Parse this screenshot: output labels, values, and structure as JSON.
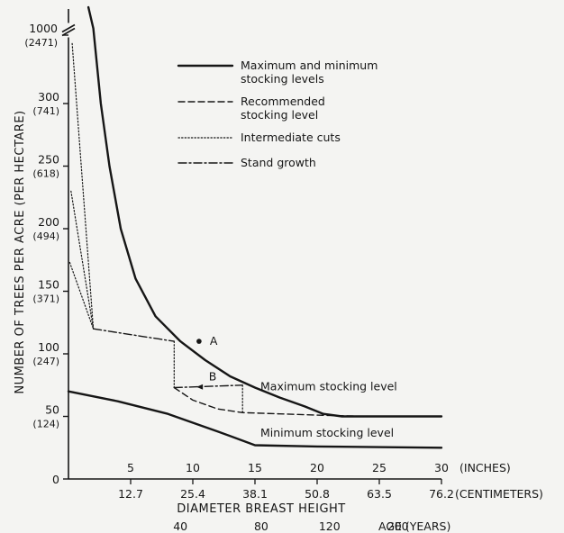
{
  "chart_data": {
    "type": "line",
    "title": "",
    "ylabel": "NUMBER OF TREES PER ACRE (PER HECTARE)",
    "xlabel": "DIAMETER BREAST HEIGHT",
    "x_unit_primary": "(INCHES)",
    "x_unit_secondary": "(CENTIMETERS)",
    "age_axis_label": "AGE (YEARS)",
    "xlim": [
      0,
      30
    ],
    "ylim": [
      0,
      350
    ],
    "y_break": {
      "below": 350,
      "label": "1000",
      "sublabel": "(2471)"
    },
    "y_ticks": [
      {
        "value": 0,
        "label": "0",
        "sublabel": ""
      },
      {
        "value": 50,
        "label": "50",
        "sublabel": "(124)"
      },
      {
        "value": 100,
        "label": "100",
        "sublabel": "(247)"
      },
      {
        "value": 150,
        "label": "150",
        "sublabel": "(371)"
      },
      {
        "value": 200,
        "label": "200",
        "sublabel": "(494)"
      },
      {
        "value": 250,
        "label": "250",
        "sublabel": "(618)"
      },
      {
        "value": 300,
        "label": "300",
        "sublabel": "(741)"
      }
    ],
    "x_ticks_inches": [
      {
        "value": 5,
        "label": "5"
      },
      {
        "value": 10,
        "label": "10"
      },
      {
        "value": 15,
        "label": "15"
      },
      {
        "value": 20,
        "label": "20"
      },
      {
        "value": 25,
        "label": "25"
      },
      {
        "value": 30,
        "label": "30"
      }
    ],
    "x_ticks_cm": [
      {
        "value": 5,
        "label": "12.7"
      },
      {
        "value": 10,
        "label": "25.4"
      },
      {
        "value": 15,
        "label": "38.1"
      },
      {
        "value": 20,
        "label": "50.8"
      },
      {
        "value": 25,
        "label": "63.5"
      },
      {
        "value": 30,
        "label": "76.2"
      }
    ],
    "age_ticks": [
      {
        "value": 9,
        "label": "40"
      },
      {
        "value": 15.5,
        "label": "80"
      },
      {
        "value": 21,
        "label": "120"
      },
      {
        "value": 26.5,
        "label": "200"
      }
    ],
    "series": [
      {
        "name": "Maximum and minimum stocking levels",
        "style": "solid",
        "label": "Maximum stocking level",
        "points": [
          [
            1.6,
            420
          ],
          [
            2.0,
            360
          ],
          [
            2.6,
            300
          ],
          [
            3.3,
            250
          ],
          [
            4.2,
            200
          ],
          [
            5.4,
            160
          ],
          [
            7.0,
            130
          ],
          [
            9.0,
            110
          ],
          [
            11.0,
            95
          ],
          [
            13.0,
            82
          ],
          [
            15.0,
            73
          ],
          [
            17.0,
            65
          ],
          [
            19.0,
            58
          ],
          [
            20.5,
            52
          ],
          [
            22.0,
            50
          ],
          [
            30.0,
            50
          ]
        ]
      },
      {
        "name": "Maximum and minimum stocking levels",
        "style": "solid",
        "label": "Minimum stocking level",
        "points": [
          [
            0,
            70
          ],
          [
            4.0,
            62
          ],
          [
            8.0,
            52
          ],
          [
            12.0,
            38
          ],
          [
            15.0,
            27
          ],
          [
            20.0,
            26
          ],
          [
            30.0,
            25
          ]
        ]
      },
      {
        "name": "Recommended stocking level",
        "style": "dashed",
        "points": [
          [
            8.5,
            73
          ],
          [
            10.0,
            63
          ],
          [
            12.0,
            56
          ],
          [
            14.0,
            53
          ],
          [
            17.0,
            52
          ],
          [
            20.0,
            51
          ],
          [
            24.0,
            50
          ]
        ]
      },
      {
        "name": "Intermediate cuts",
        "style": "dotted",
        "segments": [
          [
            [
              0.3,
              348
            ],
            [
              2.0,
              120
            ]
          ],
          [
            [
              0.2,
              230
            ],
            [
              2.0,
              120
            ]
          ],
          [
            [
              0.1,
              173
            ],
            [
              2.0,
              120
            ]
          ],
          [
            [
              8.5,
              110
            ],
            [
              8.5,
              73
            ]
          ],
          [
            [
              14.0,
              75
            ],
            [
              14.0,
              53
            ]
          ]
        ]
      },
      {
        "name": "Stand growth",
        "style": "dashdot",
        "segments": [
          [
            [
              2.0,
              120
            ],
            [
              8.5,
              110
            ]
          ],
          [
            [
              8.5,
              73
            ],
            [
              14.0,
              75
            ]
          ]
        ]
      }
    ],
    "annotations": [
      {
        "label": "A",
        "x": 10.5,
        "y": 110,
        "point": true
      },
      {
        "label": "B",
        "x": 11.6,
        "y": 73,
        "point": false
      }
    ],
    "legend": {
      "position": "top-center",
      "entries": [
        {
          "style": "solid",
          "text": [
            "Maximum and minimum",
            "stocking levels"
          ]
        },
        {
          "style": "dashed",
          "text": [
            "Recommended",
            "stocking level"
          ]
        },
        {
          "style": "dotted",
          "text": [
            "Intermediate cuts"
          ]
        },
        {
          "style": "dashdot",
          "text": [
            "Stand growth"
          ]
        }
      ]
    },
    "grid": false
  }
}
